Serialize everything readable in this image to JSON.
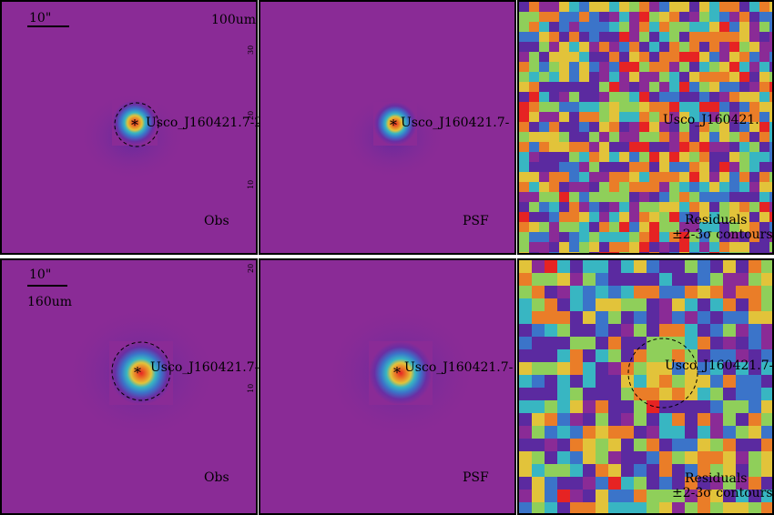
{
  "figure": {
    "rows": [
      {
        "band": "100um",
        "panels": [
          {
            "label": "Obs",
            "target": "Usco_J160421.7-2",
            "scalebar": "10\""
          },
          {
            "label": "PSF",
            "target": "Usco_J160421.7-",
            "scalebar": ""
          },
          {
            "label": "Residuals",
            "label2": "±2-3σ contours",
            "target": "Usco_J160421.",
            "scalebar": ""
          }
        ],
        "y_ticks": [
          "30",
          "20",
          "10"
        ]
      },
      {
        "band": "160um",
        "panels": [
          {
            "label": "Obs",
            "target": "Usco_J160421.7-",
            "scalebar": "10\""
          },
          {
            "label": "PSF",
            "target": "Usco_J160421.7-",
            "scalebar": ""
          },
          {
            "label": "Residuals",
            "label2": "±2-3σ contours",
            "target": "Usco_J160421.7-",
            "scalebar": ""
          }
        ],
        "y_ticks": [
          "20",
          "10"
        ]
      }
    ],
    "colors": {
      "background": "#8a2b96",
      "purple_dark": "#5b2aa0",
      "blue": "#3b74c9",
      "cyan": "#38b6c2",
      "green": "#8fcf5a",
      "yellow": "#e2c33a",
      "orange": "#ea7d28",
      "red": "#e62323"
    }
  }
}
